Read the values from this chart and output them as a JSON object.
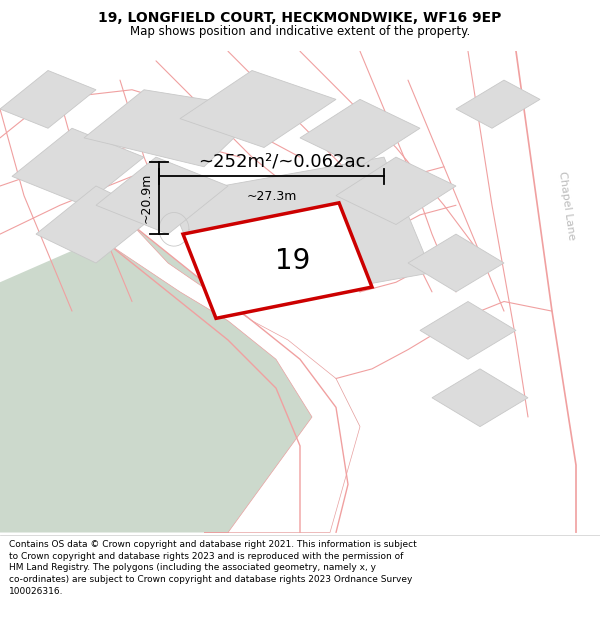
{
  "title": "19, LONGFIELD COURT, HECKMONDWIKE, WF16 9EP",
  "subtitle": "Map shows position and indicative extent of the property.",
  "footer": "Contains OS data © Crown copyright and database right 2021. This information is subject to Crown copyright and database rights 2023 and is reproduced with the permission of HM Land Registry. The polygons (including the associated geometry, namely x, y co-ordinates) are subject to Crown copyright and database rights 2023 Ordnance Survey 100026316.",
  "map_bg": "#f0ede8",
  "building_fill": "#dcdcdc",
  "building_stroke": "#c8c8c8",
  "green_fill": "#ccd9cc",
  "subject_fill": "#ffffff",
  "subject_stroke": "#cc0000",
  "road_stroke": "#f0a0a0",
  "parcel_stroke": "#e8a0a0",
  "chapel_lane_color": "#bbbbbb",
  "area_text": "~252m²/~0.062ac.",
  "width_text": "~27.3m",
  "height_text": "~20.9m",
  "label": "19",
  "chapel_lane": "Chapel Lane",
  "title_fontsize": 10,
  "subtitle_fontsize": 8.5,
  "area_fontsize": 13,
  "dim_fontsize": 9,
  "label_fontsize": 20,
  "chapel_fontsize": 8
}
